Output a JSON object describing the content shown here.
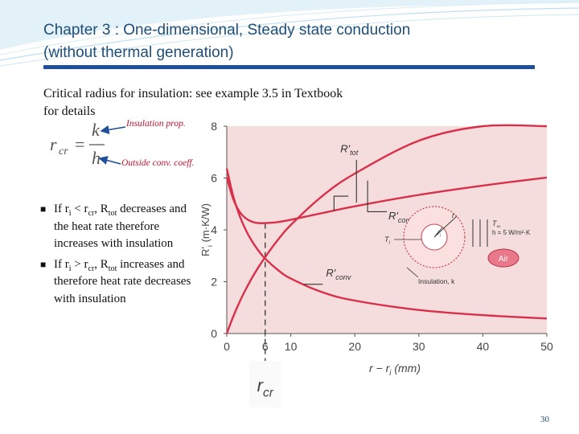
{
  "slide": {
    "title_line1": "Chapter 3 : One-dimensional, Steady state conduction",
    "title_line2": "(without thermal generation)",
    "subtitle_line1": "Critical radius for insulation: see example 3.5 in Textbook",
    "subtitle_line2": "for details",
    "page_number": "30"
  },
  "formula": {
    "lhs": "r",
    "lhs_sub": "cr",
    "equals": "=",
    "numerator": "k",
    "denominator": "h"
  },
  "annotations": {
    "insulation": "Insulation prop.",
    "outside": "Outside conv. coeff."
  },
  "bullets": [
    {
      "pre": "If r",
      "sub1": "i",
      "mid": " < r",
      "sub2": "cr",
      "mid2": ", R",
      "sub3": "tot",
      "post": " decreases and the heat rate therefore increases with insulation"
    },
    {
      "pre": "If r",
      "sub1": "i",
      "mid": " > r",
      "sub2": "cr",
      "mid2": ", R",
      "sub3": "tot",
      "post": " increases and therefore heat rate decreases with insulation"
    }
  ],
  "colors": {
    "title": "#1f4e79",
    "bar": "#1f4f9a",
    "accent_red": "#c0152f",
    "plot_bg": "#f6dddd",
    "curve": "#d9304a"
  },
  "chart_data": {
    "type": "line",
    "xlabel": "r − r_i (mm)",
    "ylabel": "R'_i (m·K/W)",
    "xlim": [
      0,
      50
    ],
    "ylim": [
      0,
      8
    ],
    "xticks": [
      0,
      10,
      20,
      30,
      40,
      50
    ],
    "xtick_extra": [
      6
    ],
    "yticks": [
      0,
      2,
      4,
      6,
      8
    ],
    "grid": false,
    "vline": {
      "x": 6,
      "label": "r",
      "label_sub": "cr"
    },
    "series": [
      {
        "name": "R'tot",
        "x": [
          0,
          1,
          2,
          3,
          4,
          5,
          6,
          8,
          10,
          15,
          20,
          30,
          40,
          50
        ],
        "y": [
          6.03,
          5.19,
          4.7,
          4.44,
          4.31,
          4.26,
          4.26,
          4.3,
          4.39,
          4.65,
          4.91,
          5.35,
          5.71,
          6.02
        ]
      },
      {
        "name": "R'cond",
        "x": [
          0,
          1,
          2,
          3,
          4,
          5,
          6,
          8,
          10,
          15,
          20,
          30,
          40,
          50
        ],
        "y": [
          0,
          0.65,
          1.22,
          1.72,
          2.17,
          2.58,
          2.95,
          3.62,
          4.19,
          5.32,
          6.17,
          7.44,
          8.4,
          9.16
        ]
      },
      {
        "name": "R'conv",
        "x": [
          0,
          1,
          2,
          3,
          4,
          5,
          6,
          8,
          10,
          15,
          20,
          30,
          40,
          50
        ],
        "y": [
          6.37,
          5.31,
          4.55,
          3.98,
          3.54,
          3.18,
          2.89,
          2.45,
          2.12,
          1.59,
          1.27,
          0.91,
          0.71,
          0.58
        ]
      }
    ],
    "inset": {
      "line1_lhs": "T",
      "line1_sub": "∞",
      "line1_rhs": "h = 5 W/m²·K",
      "air": "Air",
      "ti": "T",
      "ti_sub": "i",
      "ri": "r",
      "ri_sub": "i",
      "r": "r",
      "insulation": "Insulation, k"
    }
  }
}
